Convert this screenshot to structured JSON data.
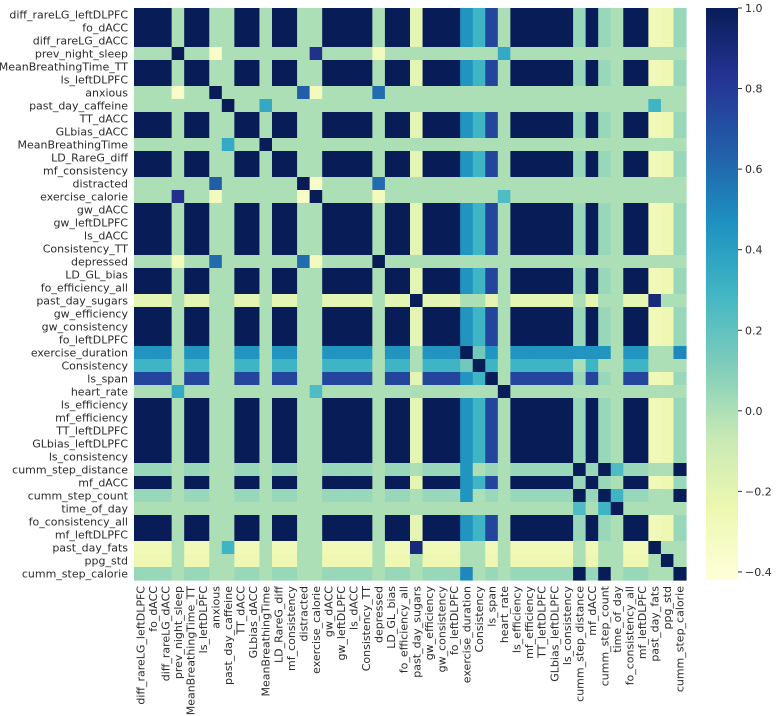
{
  "chart_data": {
    "type": "heatmap",
    "title": "",
    "xlabel": "",
    "ylabel": "",
    "variables": [
      "diff_rareLG_leftDLPFC",
      "fo_dACC",
      "diff_rareLG_dACC",
      "prev_night_sleep",
      "MeanBreathingTime_TT",
      "ls_leftDLPFC",
      "anxious",
      "past_day_caffeine",
      "TT_dACC",
      "GLbias_dACC",
      "MeanBreathingTime",
      "LD_RareG_diff",
      "mf_consistency",
      "distracted",
      "exercise_calorie",
      "gw_dACC",
      "gw_leftDLPFC",
      "ls_dACC",
      "Consistency_TT",
      "depressed",
      "LD_GL_bias",
      "fo_efficiency_all",
      "past_day_sugars",
      "gw_efficiency",
      "gw_consistency",
      "fo_leftDLPFC",
      "exercise_duration",
      "Consistency",
      "ls_span",
      "heart_rate",
      "ls_efficiency",
      "mf_efficiency",
      "TT_leftDLPFC",
      "GLbias_leftDLPFC",
      "ls_consistency",
      "cumm_step_distance",
      "mf_dACC",
      "cumm_step_count",
      "time_of_day",
      "fo_consistency_all",
      "mf_leftDLPFC",
      "past_day_fats",
      "ppg_std",
      "cumm_step_calorie"
    ],
    "colorbar": {
      "min": -0.42,
      "max": 1.0,
      "ticks": [
        "1.0",
        "0.8",
        "0.6",
        "0.4",
        "0.2",
        "0.0",
        "−0.2",
        "−0.4"
      ],
      "tick_values": [
        1.0,
        0.8,
        0.6,
        0.4,
        0.2,
        0.0,
        -0.2,
        -0.4
      ],
      "colormap": "YlGnBu"
    },
    "clusters": {
      "A": [
        0,
        1,
        2,
        4,
        5,
        8,
        9,
        11,
        12,
        15,
        16,
        17,
        18,
        20,
        21,
        23,
        24,
        25,
        28,
        30,
        31,
        32,
        33,
        34,
        36,
        39,
        40
      ],
      "C": [
        35,
        37,
        43
      ]
    },
    "pair_values": [
      {
        "vars": [
          3,
          14
        ],
        "value": 0.85
      },
      {
        "vars": [
          6,
          13
        ],
        "value": 0.65
      },
      {
        "vars": [
          6,
          19
        ],
        "value": 0.6
      },
      {
        "vars": [
          13,
          19
        ],
        "value": 0.6
      },
      {
        "vars": [
          22,
          41
        ],
        "value": 0.9
      },
      {
        "vars": [
          10,
          7
        ],
        "value": 0.35
      },
      {
        "vars": [
          7,
          41
        ],
        "value": 0.3
      },
      {
        "vars": [
          29,
          3
        ],
        "value": 0.35
      },
      {
        "vars": [
          29,
          14
        ],
        "value": 0.25
      },
      {
        "vars": [
          26,
          43
        ],
        "value": 0.5
      },
      {
        "vars": [
          26,
          35
        ],
        "value": 0.45
      },
      {
        "vars": [
          26,
          37
        ],
        "value": 0.45
      },
      {
        "vars": [
          38,
          37
        ],
        "value": 0.3
      },
      {
        "vars": [
          38,
          35
        ],
        "value": 0.25
      },
      {
        "vars": [
          27,
          26
        ],
        "value": 0.15
      },
      {
        "vars": [
          3,
          6
        ],
        "value": -0.35
      },
      {
        "vars": [
          3,
          19
        ],
        "value": -0.3
      },
      {
        "vars": [
          14,
          13
        ],
        "value": -0.35
      },
      {
        "vars": [
          14,
          19
        ],
        "value": -0.3
      },
      {
        "vars": [
          6,
          14
        ],
        "value": -0.3
      }
    ],
    "group_values": {
      "A_A": 1.0,
      "A_C": 0.05,
      "C_C": 1.0,
      "exercise_duration_A": 0.45,
      "exercise_duration_C": 0.42,
      "Consistency_A": 0.3,
      "ls_span_A": 0.75,
      "past_day_fats_A": -0.28,
      "ppg_std_A": -0.25,
      "past_day_sugars_A": -0.2,
      "other_A": 0.0,
      "other_other": 0.0
    }
  }
}
